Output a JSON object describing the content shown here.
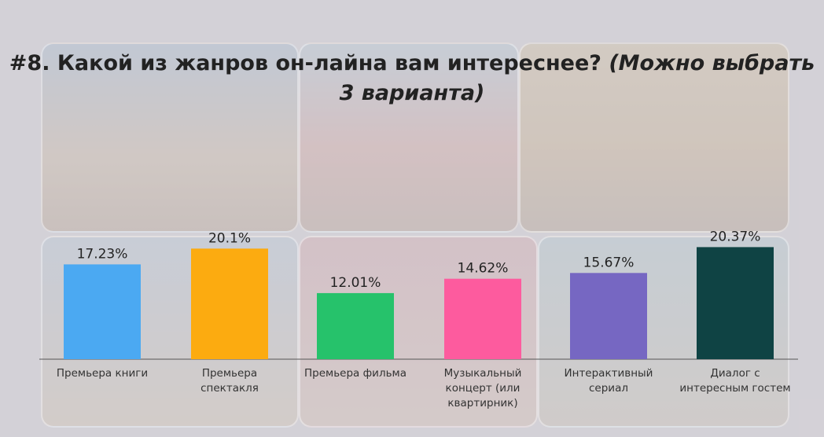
{
  "title": {
    "main": "#8. Какой из жанров он-лайна вам интереснее?",
    "note": "(Можно выбрать 3 варианта)"
  },
  "chart_data": {
    "type": "bar",
    "title": "#8. Какой из жанров он-лайна вам интереснее? (Можно выбрать 3 варианта)",
    "xlabel": "",
    "ylabel": "",
    "ylim": [
      0,
      22
    ],
    "categories": [
      [
        "Премьера книги"
      ],
      [
        "Премьера",
        "спектакля"
      ],
      [
        "Премьера фильма"
      ],
      [
        "Музыкальный",
        "концерт (или",
        "квартирник)"
      ],
      [
        "Интерактивный",
        "сериал"
      ],
      [
        "Диалог с",
        "интересным гостем"
      ]
    ],
    "values": [
      17.23,
      20.1,
      12.01,
      14.62,
      15.67,
      20.37
    ],
    "value_labels": [
      "17.23%",
      "20.1%",
      "12.01%",
      "14.62%",
      "15.67%",
      "20.37%"
    ],
    "colors": [
      "#4ba9f2",
      "#fcab10",
      "#26c26b",
      "#fd5b9e",
      "#7667c2",
      "#0f4344"
    ],
    "grid": false,
    "legend": "none"
  }
}
